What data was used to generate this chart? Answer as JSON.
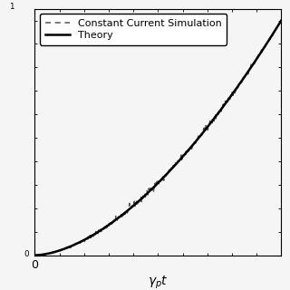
{
  "title": "",
  "xlabel": "$\\gamma_p t$",
  "ylabel": "",
  "xlim": [
    0,
    5
  ],
  "ylim": [
    0,
    1.05
  ],
  "legend_entries": [
    "Theory",
    "Constant Current Simulation"
  ],
  "theory_color": "#000000",
  "sim_color": "#555555",
  "background_color": "#f5f5f5",
  "theory_linewidth": 1.8,
  "sim_linewidth": 1.1,
  "sim_linestyle": "--",
  "theory_linestyle": "-",
  "legend_fontsize": 8,
  "xlabel_fontsize": 10,
  "tick_label_fontsize": 9
}
